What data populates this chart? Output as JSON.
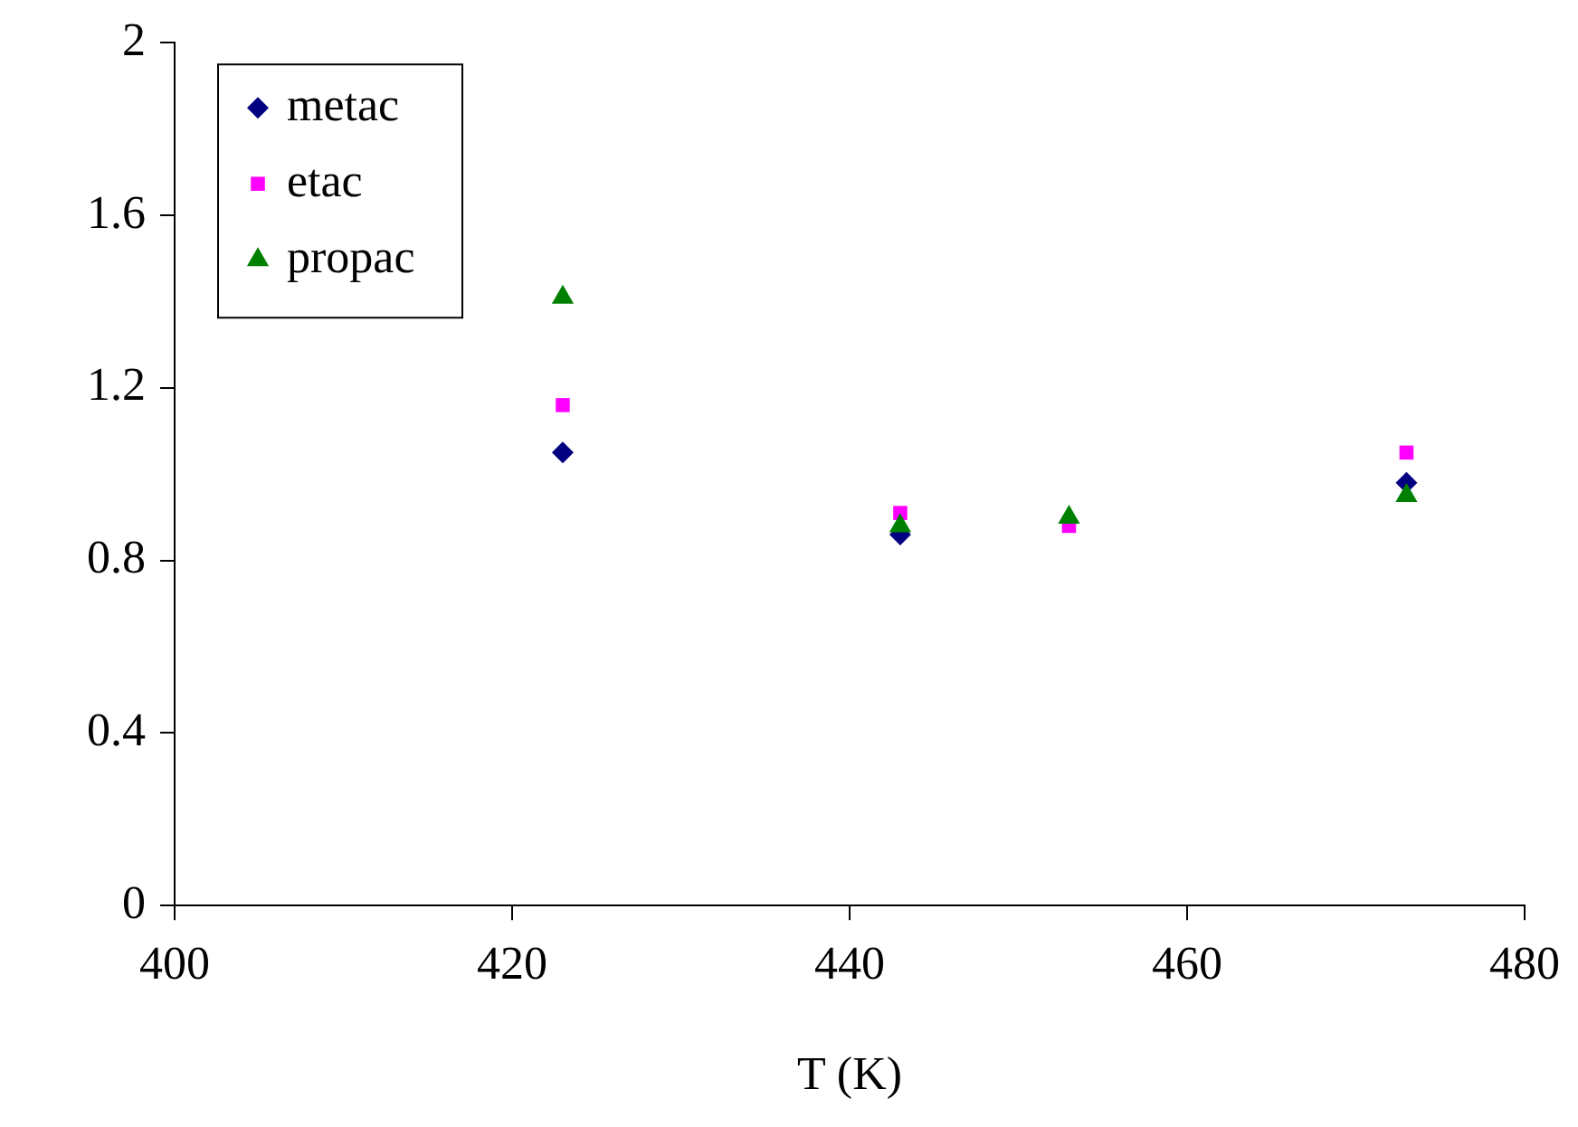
{
  "chart_data": {
    "type": "scatter",
    "xlabel": "T (K)",
    "xlim": [
      400,
      480
    ],
    "xticks": [
      400,
      420,
      440,
      460,
      480
    ],
    "ylim": [
      0,
      2
    ],
    "yticks": [
      0,
      {
        "value": 0.4,
        "label": "0.4"
      },
      {
        "value": 0.8,
        "label": "0.8"
      },
      {
        "value": 1.2,
        "label": "1.2"
      },
      {
        "value": 1.6,
        "label": "1.6"
      },
      2
    ],
    "grid": false,
    "legend": "top left",
    "x": [
      423,
      443,
      453,
      473
    ],
    "series": [
      {
        "name": "metac",
        "color": "#000080",
        "marker": "diamond",
        "values": [
          1.05,
          0.86,
          null,
          0.98
        ]
      },
      {
        "name": "etac",
        "color": "#ff00ff",
        "marker": "square",
        "values": [
          1.16,
          0.91,
          0.88,
          1.05
        ]
      },
      {
        "name": "propac",
        "color": "#008000",
        "marker": "triangle",
        "values": [
          1.41,
          0.88,
          0.9,
          0.95
        ]
      }
    ]
  }
}
